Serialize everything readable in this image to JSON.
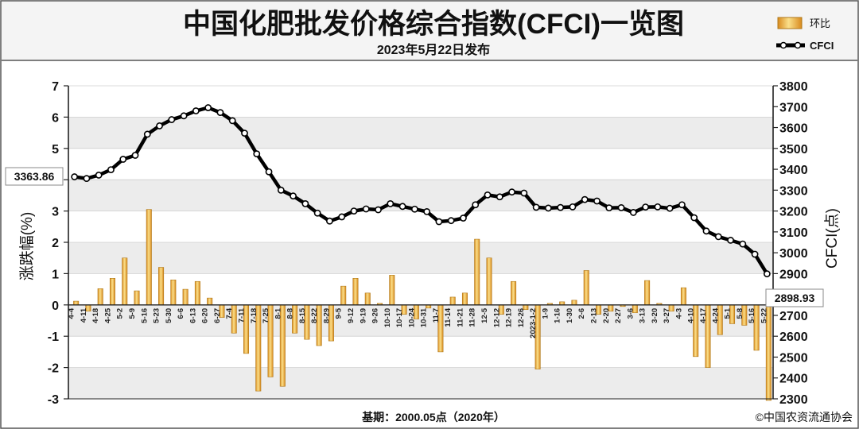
{
  "header": {
    "title": "中国化肥批发价格综合指数(CFCI)一览图",
    "subtitle": "2023年5月22日发布"
  },
  "legend": {
    "bar_label": "环比",
    "line_label": "CFCI"
  },
  "footer": {
    "base_note": "基期：2000.05点（2020年）",
    "copyright": "©中国农资流通协会"
  },
  "callouts": {
    "start_value": "3363.86",
    "end_value": "2898.93"
  },
  "colors": {
    "bar_fill": "#f0b24a",
    "bar_edge": "#b07818",
    "line": "#000000",
    "plot_bg": "#ececec",
    "grid_band": "#ffffff"
  },
  "chart_data": {
    "type": "bar",
    "categories": [
      "4-4",
      "4-11",
      "4-18",
      "4-25",
      "5-2",
      "5-9",
      "5-16",
      "5-23",
      "5-30",
      "6-6",
      "6-13",
      "6-20",
      "6-27",
      "7-4",
      "7-11",
      "7-18",
      "7-25",
      "8-1",
      "8-8",
      "8-15",
      "8-22",
      "8-29",
      "9-5",
      "9-12",
      "9-19",
      "9-26",
      "10-10",
      "10-17",
      "10-24",
      "10-31",
      "11-7",
      "11-14",
      "11-21",
      "11-28",
      "12-5",
      "12-12",
      "12-19",
      "12-26",
      "2023-1-2",
      "1-9",
      "1-16",
      "1-30",
      "2-6",
      "2-13",
      "2-20",
      "2-27",
      "3-6",
      "3-13",
      "3-20",
      "3-27",
      "4-3",
      "4-10",
      "4-17",
      "4-24",
      "5-1",
      "5-8",
      "5-16",
      "5-22"
    ],
    "series": [
      {
        "name": "环比",
        "type": "bar",
        "axis": "left",
        "values": [
          0.12,
          -0.2,
          0.52,
          0.85,
          1.5,
          0.45,
          3.05,
          1.2,
          0.8,
          0.5,
          0.75,
          0.22,
          -0.4,
          -0.9,
          -1.55,
          -2.75,
          -2.3,
          -2.6,
          -0.9,
          -1.1,
          -1.3,
          -1.15,
          0.6,
          0.85,
          0.38,
          0.05,
          0.95,
          -0.3,
          -0.45,
          -0.1,
          -1.5,
          0.25,
          0.38,
          2.1,
          1.5,
          -0.3,
          0.75,
          -0.15,
          -2.05,
          0.05,
          0.1,
          0.15,
          1.1,
          -0.3,
          -0.2,
          -0.05,
          -0.25,
          0.78,
          0.05,
          -0.2,
          0.55,
          -1.65,
          -2.0,
          -0.95,
          -0.6,
          -0.65,
          -1.45,
          -3.05
        ]
      },
      {
        "name": "CFCI",
        "type": "line",
        "axis": "right",
        "values": [
          3363.86,
          3356,
          3372,
          3398,
          3448,
          3467,
          3568,
          3608,
          3638,
          3656,
          3680,
          3695,
          3672,
          3633,
          3573,
          3474,
          3388,
          3300,
          3272,
          3235,
          3190,
          3152,
          3172,
          3200,
          3210,
          3206,
          3235,
          3222,
          3209,
          3197,
          3149,
          3154,
          3166,
          3230,
          3277,
          3268,
          3291,
          3286,
          3218,
          3214,
          3217,
          3220,
          3255,
          3248,
          3215,
          3216,
          3193,
          3219,
          3220,
          3213,
          3230,
          3168,
          3104,
          3077,
          3060,
          3042,
          2993,
          2898.93
        ]
      }
    ],
    "y_left": {
      "label": "涨跌幅(%)",
      "min": -3,
      "max": 7,
      "ticks": [
        -3,
        -2,
        -1,
        0,
        1,
        2,
        3,
        4,
        5,
        6,
        7
      ]
    },
    "y_right": {
      "label": "CFCI(点)",
      "min": 2300,
      "max": 3800,
      "ticks": [
        2300,
        2400,
        2500,
        2600,
        2700,
        2800,
        2900,
        3000,
        3100,
        3200,
        3300,
        3400,
        3500,
        3600,
        3700,
        3800
      ]
    },
    "grid": "horizontal bands",
    "legend_position": "top-right"
  }
}
